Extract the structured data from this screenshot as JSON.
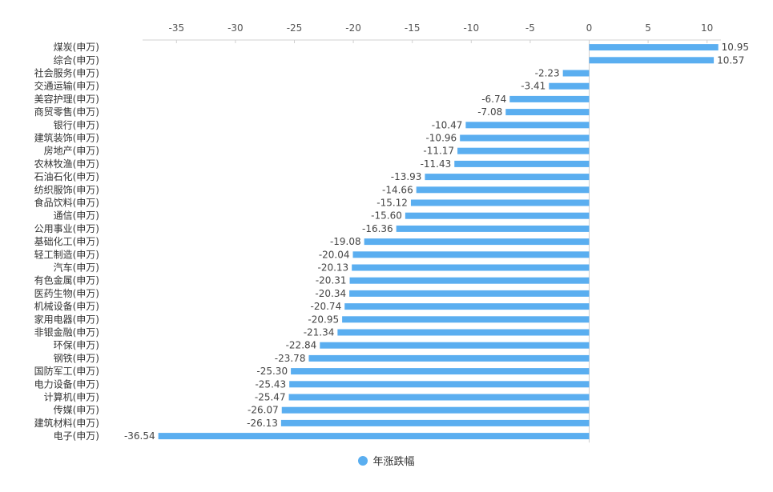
{
  "chart_data": {
    "type": "bar",
    "orientation": "horizontal",
    "categories": [
      "煤炭(申万)",
      "综合(申万)",
      "社会服务(申万)",
      "交通运输(申万)",
      "美容护理(申万)",
      "商贸零售(申万)",
      "银行(申万)",
      "建筑装饰(申万)",
      "房地产(申万)",
      "农林牧渔(申万)",
      "石油石化(申万)",
      "纺织服饰(申万)",
      "食品饮料(申万)",
      "通信(申万)",
      "公用事业(申万)",
      "基础化工(申万)",
      "轻工制造(申万)",
      "汽车(申万)",
      "有色金属(申万)",
      "医药生物(申万)",
      "机械设备(申万)",
      "家用电器(申万)",
      "非银金融(申万)",
      "环保(申万)",
      "钢铁(申万)",
      "国防军工(申万)",
      "电力设备(申万)",
      "计算机(申万)",
      "传媒(申万)",
      "建筑材料(申万)",
      "电子(申万)"
    ],
    "series": [
      {
        "name": "年涨跌幅",
        "color": "#5aaef0",
        "values": [
          10.95,
          10.57,
          -2.23,
          -3.41,
          -6.74,
          -7.08,
          -10.47,
          -10.96,
          -11.17,
          -11.43,
          -13.93,
          -14.66,
          -15.12,
          -15.6,
          -16.36,
          -19.08,
          -20.04,
          -20.13,
          -20.31,
          -20.34,
          -20.74,
          -20.95,
          -21.34,
          -22.84,
          -23.78,
          -25.3,
          -25.43,
          -25.47,
          -26.07,
          -26.13,
          -36.54
        ],
        "value_labels": [
          "10.95",
          "10.57",
          "-2.23",
          "-3.41",
          "-6.74",
          "-7.08",
          "-10.47",
          "-10.96",
          "-11.17",
          "-11.43",
          "-13.93",
          "-14.66",
          "-15.12",
          "-15.60",
          "-16.36",
          "-19.08",
          "-20.04",
          "-20.13",
          "-20.31",
          "-20.34",
          "-20.74",
          "-20.95",
          "-21.34",
          "-22.84",
          "-23.78",
          "-25.30",
          "-25.43",
          "-25.47",
          "-26.07",
          "-26.13",
          "-36.54"
        ]
      }
    ],
    "x_ticks": [
      "-35",
      "-30",
      "-25",
      "-20",
      "-15",
      "-10",
      "-5",
      "0",
      "5",
      "10"
    ],
    "xlim": [
      -38,
      12
    ],
    "axis_position": "top",
    "grid": false,
    "legend_position": "bottom-center"
  },
  "legend": {
    "label": "年涨跌幅"
  }
}
